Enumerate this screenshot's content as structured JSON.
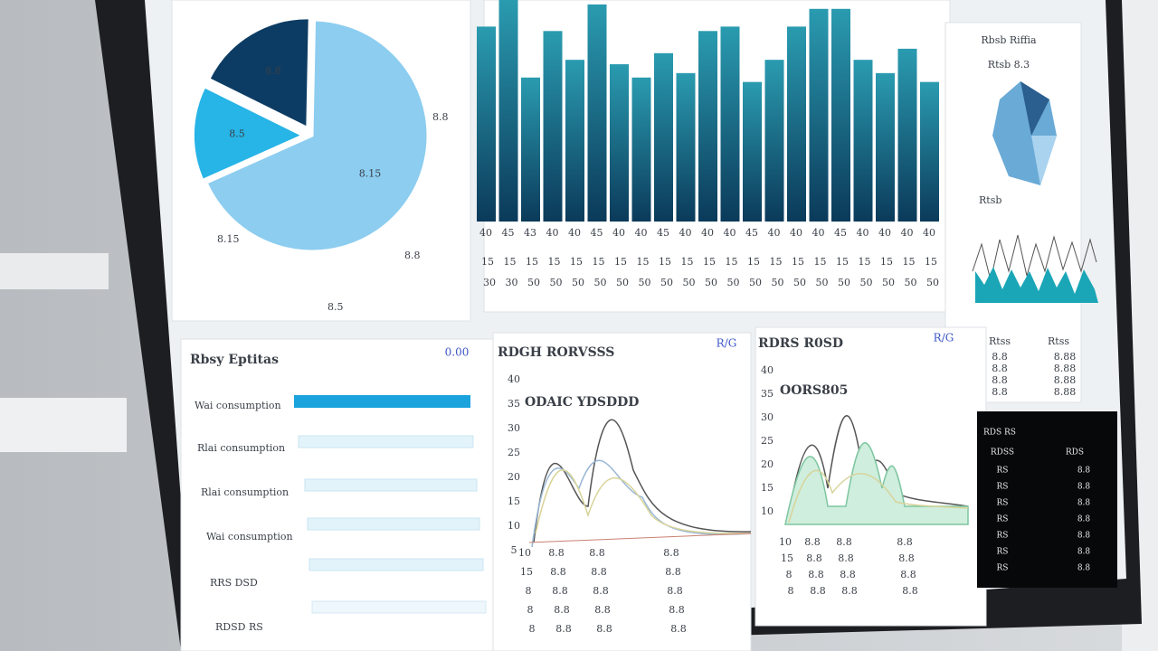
{
  "pie_panel": {
    "values": [
      68,
      14,
      18
    ],
    "slice_labels": [
      "8.15",
      "8.5",
      "8.8"
    ],
    "outer_labels": [
      "8.15",
      "8.8",
      "8.8",
      "8.5"
    ]
  },
  "bar_panel": {
    "values": [
      88,
      100,
      65,
      86,
      73,
      98,
      71,
      65,
      76,
      67,
      86,
      88,
      63,
      73,
      88,
      96,
      96,
      73,
      67,
      78,
      63
    ],
    "tick_rows": [
      [
        "40",
        "45",
        "43",
        "40",
        "40",
        "45",
        "40",
        "40",
        "45",
        "40",
        "40",
        "40",
        "45",
        "40",
        "40",
        "40",
        "45",
        "40",
        "40",
        "40",
        "40"
      ],
      [
        "15",
        "15",
        "15",
        "15",
        "15",
        "15",
        "15",
        "15",
        "15",
        "15",
        "15",
        "15",
        "15",
        "15",
        "15",
        "15",
        "15",
        "15",
        "15",
        "15",
        "15"
      ],
      [
        "30",
        "30",
        "50",
        "50",
        "50",
        "50",
        "50",
        "50",
        "50",
        "50",
        "50",
        "50",
        "50",
        "50",
        "50",
        "50",
        "50",
        "50",
        "50",
        "50",
        "50"
      ]
    ]
  },
  "side_panel": {
    "title": "Rbsb Riffia",
    "subtitle": "Rtsb 8.3",
    "label": "Rtsb",
    "header": [
      "Rtss",
      "Rtss"
    ],
    "rows": [
      [
        "8.8",
        "8.88"
      ],
      [
        "8.8",
        "8.88"
      ],
      [
        "8.8",
        "8.88"
      ],
      [
        "8.8",
        "8.88"
      ]
    ]
  },
  "usage_panel": {
    "title": "Rbsy Eptitas",
    "badge": "0.00",
    "rows": [
      "Wai consumption",
      "Rlai consumption",
      "Rlai consumption",
      "Wai consumption",
      "RRS DSD",
      "RDSD RS"
    ]
  },
  "trend_panel": {
    "title": "RDGH RORVSSS",
    "badge": "R/G",
    "heading": "ODAIC YDSDDD",
    "yticks": [
      "40",
      "35",
      "30",
      "25",
      "20",
      "15",
      "10",
      "5"
    ],
    "rows": [
      [
        "10",
        "8.8",
        "8.8",
        "8.8"
      ],
      [
        "15",
        "8.8",
        "8.8",
        "8.8"
      ],
      [
        "8",
        "8.8",
        "8.8",
        "8.8"
      ],
      [
        "8",
        "8.8",
        "8.8",
        "8.8"
      ],
      [
        "8",
        "8.8",
        "8.8",
        "8.8"
      ]
    ]
  },
  "peak_panel": {
    "title": "RDRS R0SD",
    "badge": "R/G",
    "heading": "OORS805",
    "yticks": [
      "40",
      "35",
      "30",
      "25",
      "20",
      "15",
      "10"
    ],
    "rows": [
      [
        "10",
        "8.8",
        "8.8",
        "8.8"
      ],
      [
        "15",
        "8.8",
        "8.8",
        "8.8"
      ],
      [
        "8",
        "8.8",
        "8.8",
        "8.8"
      ],
      [
        "8",
        "8.8",
        "8.8",
        "8.8"
      ]
    ]
  },
  "dark_panel": {
    "title": "RDS RS",
    "header": [
      "RDSS",
      "RDS"
    ],
    "rows": [
      [
        "RS",
        "8.8"
      ],
      [
        "RS",
        "8.8"
      ],
      [
        "RS",
        "8.8"
      ],
      [
        "RS",
        "8.8"
      ],
      [
        "RS",
        "8.8"
      ],
      [
        "RS",
        "8.8"
      ],
      [
        "RS",
        "8.8"
      ]
    ]
  }
}
